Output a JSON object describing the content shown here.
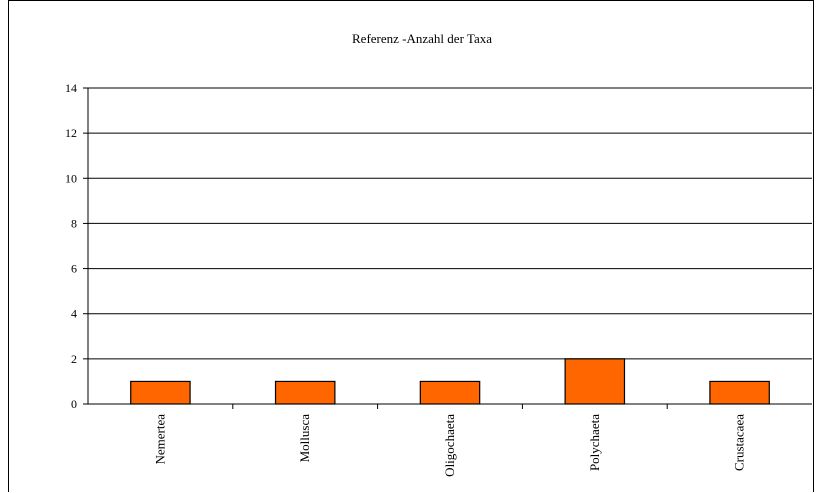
{
  "chart_data": {
    "type": "bar",
    "title": "Referenz -Anzahl der Taxa",
    "xlabel": "",
    "ylabel": "",
    "categories": [
      "Nemertea",
      "Mollusca",
      "Oligochaeta",
      "Polychaeta",
      "Crustacaea"
    ],
    "values": [
      1,
      1,
      1,
      2,
      1
    ],
    "ylim": [
      0,
      14
    ],
    "yticks": [
      0,
      2,
      4,
      6,
      8,
      10,
      12,
      14
    ],
    "grid": true,
    "legend": "none",
    "bar_color": "#ff6600",
    "bar_edge_color": "#000000"
  }
}
